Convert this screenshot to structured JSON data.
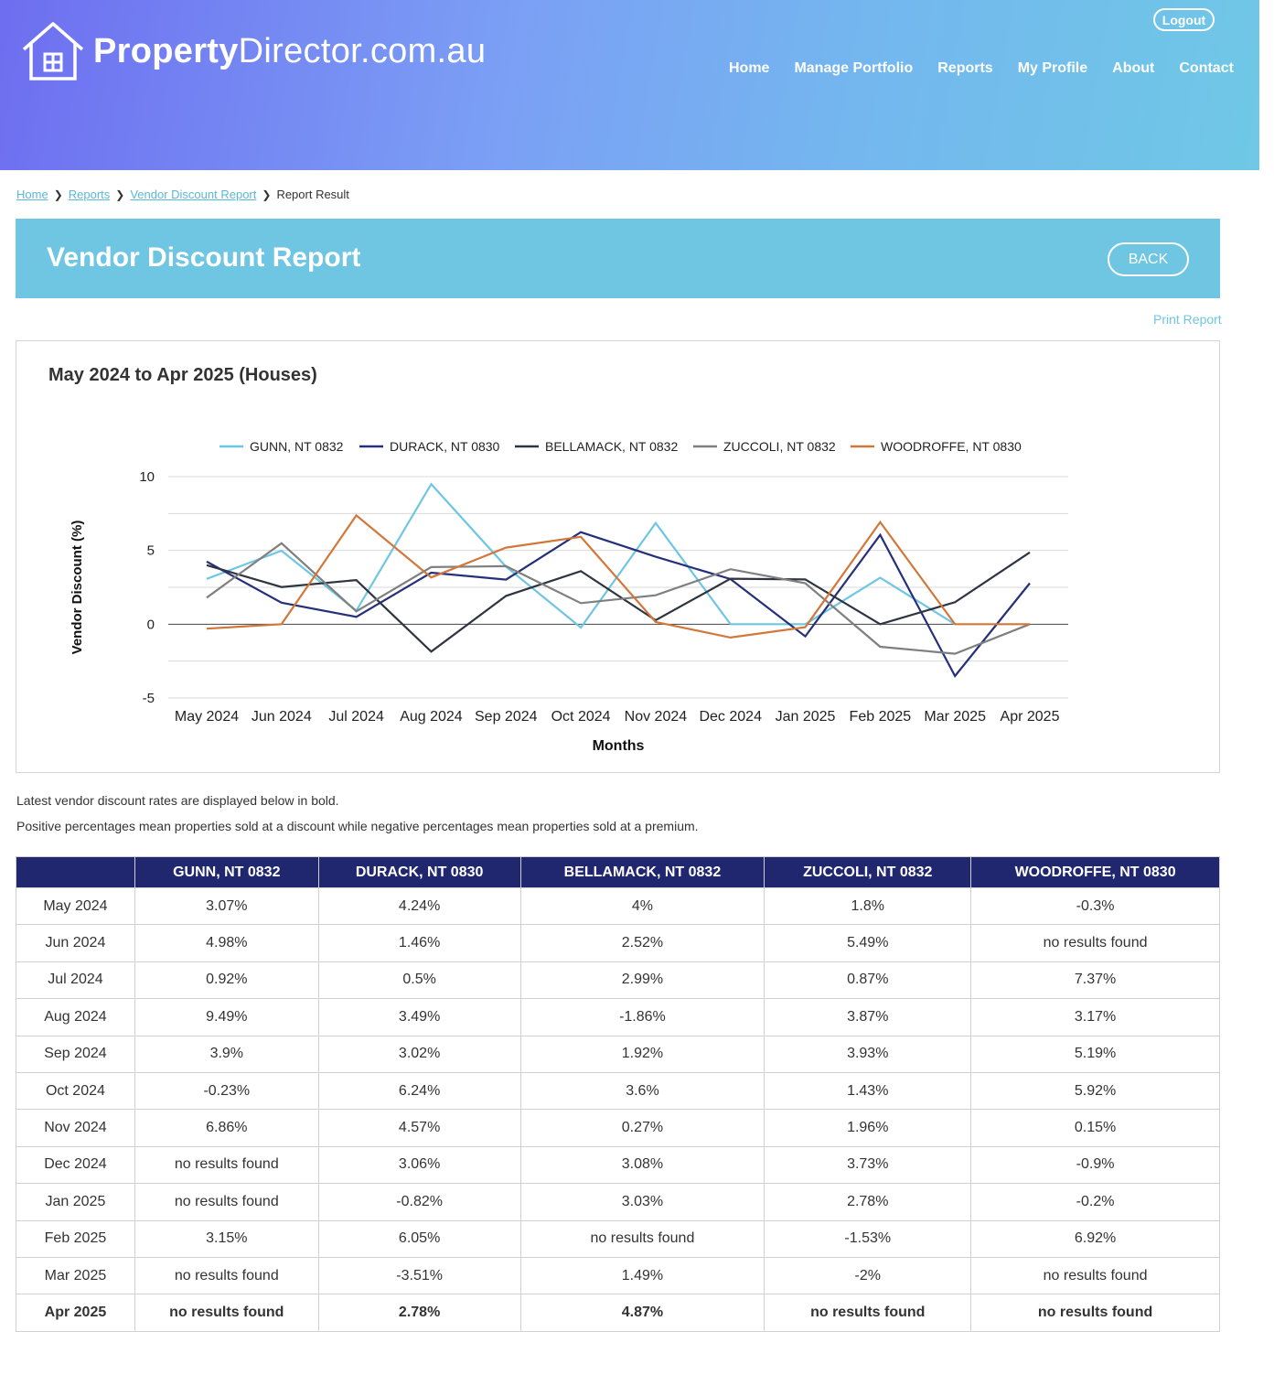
{
  "header": {
    "logo_bold": "Property",
    "logo_light": "Director.com.au",
    "logout_label": "Logout",
    "nav": [
      "Home",
      "Manage Portfolio",
      "Reports",
      "My Profile",
      "About",
      "Contact"
    ]
  },
  "breadcrumb": {
    "items": [
      "Home",
      "Reports",
      "Vendor Discount Report"
    ],
    "current": "Report Result"
  },
  "banner": {
    "title": "Vendor Discount Report",
    "back_label": "BACK"
  },
  "print_label": "Print Report",
  "chart_data": {
    "type": "line",
    "title": "May 2024 to Apr 2025 (Houses)",
    "xlabel": "Months",
    "ylabel": "Vendor Discount (%)",
    "ylim": [
      -5,
      10
    ],
    "yticks": [
      10,
      5,
      0,
      -5
    ],
    "grid": true,
    "legend_position": "top",
    "categories": [
      "May 2024",
      "Jun 2024",
      "Jul 2024",
      "Aug 2024",
      "Sep 2024",
      "Oct 2024",
      "Nov 2024",
      "Dec 2024",
      "Jan 2025",
      "Feb 2025",
      "Mar 2025",
      "Apr 2025"
    ],
    "series": [
      {
        "name": "GUNN, NT 0832",
        "color": "#6fc6e2",
        "values": [
          3.07,
          4.98,
          0.92,
          9.49,
          3.9,
          -0.23,
          6.86,
          0,
          0,
          3.15,
          0,
          null
        ]
      },
      {
        "name": "DURACK, NT 0830",
        "color": "#25307a",
        "values": [
          4.24,
          1.46,
          0.5,
          3.49,
          3.02,
          6.24,
          4.57,
          3.06,
          -0.82,
          6.05,
          -3.51,
          2.78
        ]
      },
      {
        "name": "BELLAMACK, NT 0832",
        "color": "#2e3440",
        "values": [
          4,
          2.52,
          2.99,
          -1.86,
          1.92,
          3.6,
          0.27,
          3.08,
          3.03,
          0,
          1.49,
          4.87
        ]
      },
      {
        "name": "ZUCCOLI, NT 0832",
        "color": "#7f7f7f",
        "values": [
          1.8,
          5.49,
          0.87,
          3.87,
          3.93,
          1.43,
          1.96,
          3.73,
          2.78,
          -1.53,
          -2,
          0
        ]
      },
      {
        "name": "WOODROFFE, NT 0830",
        "color": "#d2773a",
        "values": [
          -0.3,
          0,
          7.37,
          3.17,
          5.19,
          5.92,
          0.15,
          -0.9,
          -0.2,
          6.92,
          0,
          0
        ]
      }
    ]
  },
  "notes": [
    "Latest vendor discount rates are displayed below in bold.",
    "Positive percentages mean properties sold at a discount while negative percentages mean properties sold at a premium."
  ],
  "table": {
    "columns": [
      "",
      "GUNN, NT 0832",
      "DURACK, NT 0830",
      "BELLAMACK, NT 0832",
      "ZUCCOLI, NT 0832",
      "WOODROFFE, NT 0830"
    ],
    "rows": [
      [
        "May 2024",
        "3.07%",
        "4.24%",
        "4%",
        "1.8%",
        "-0.3%"
      ],
      [
        "Jun 2024",
        "4.98%",
        "1.46%",
        "2.52%",
        "5.49%",
        "no results found"
      ],
      [
        "Jul 2024",
        "0.92%",
        "0.5%",
        "2.99%",
        "0.87%",
        "7.37%"
      ],
      [
        "Aug 2024",
        "9.49%",
        "3.49%",
        "-1.86%",
        "3.87%",
        "3.17%"
      ],
      [
        "Sep 2024",
        "3.9%",
        "3.02%",
        "1.92%",
        "3.93%",
        "5.19%"
      ],
      [
        "Oct 2024",
        "-0.23%",
        "6.24%",
        "3.6%",
        "1.43%",
        "5.92%"
      ],
      [
        "Nov 2024",
        "6.86%",
        "4.57%",
        "0.27%",
        "1.96%",
        "0.15%"
      ],
      [
        "Dec 2024",
        "no results found",
        "3.06%",
        "3.08%",
        "3.73%",
        "-0.9%"
      ],
      [
        "Jan 2025",
        "no results found",
        "-0.82%",
        "3.03%",
        "2.78%",
        "-0.2%"
      ],
      [
        "Feb 2025",
        "3.15%",
        "6.05%",
        "no results found",
        "-1.53%",
        "6.92%"
      ],
      [
        "Mar 2025",
        "no results found",
        "-3.51%",
        "1.49%",
        "-2%",
        "no results found"
      ],
      [
        "Apr 2025",
        "no results found",
        "2.78%",
        "4.87%",
        "no results found",
        "no results found"
      ]
    ]
  }
}
